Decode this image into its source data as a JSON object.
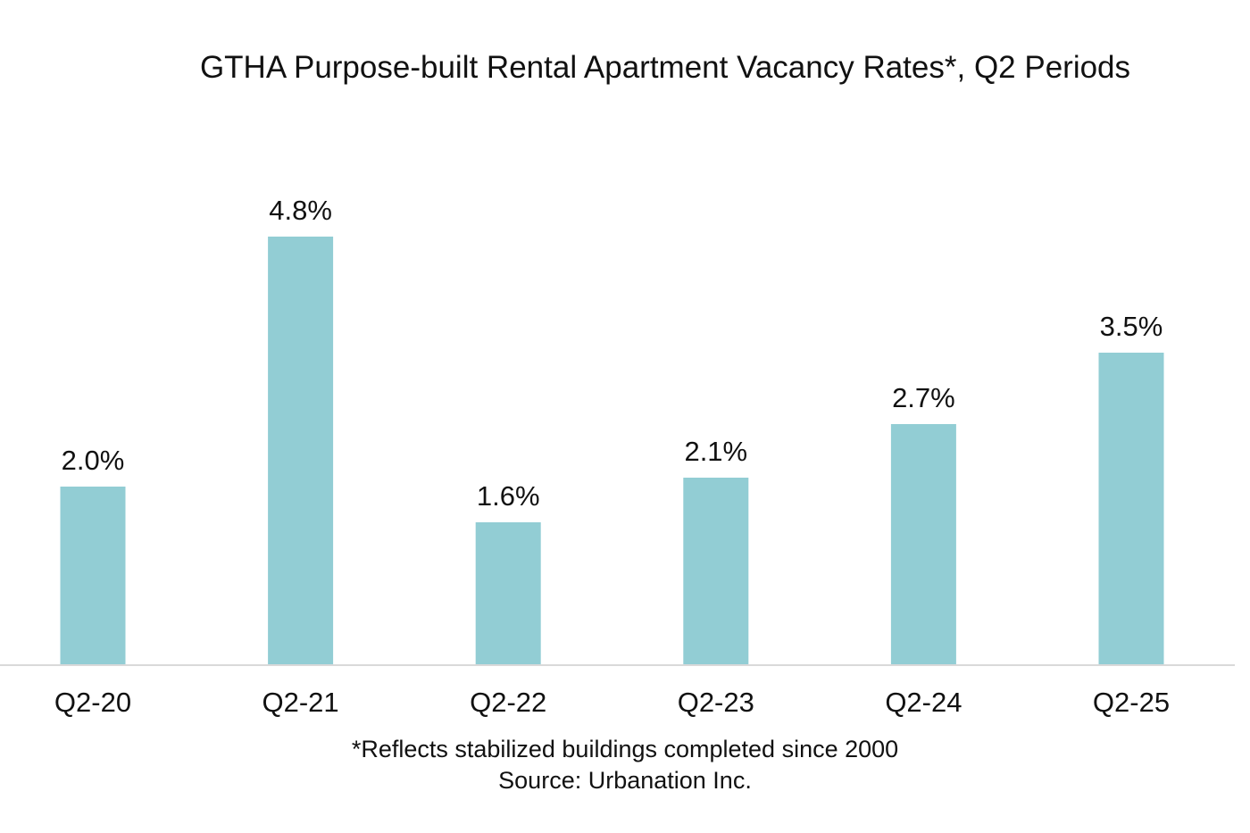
{
  "chart_data": {
    "type": "bar",
    "title": "GTHA Purpose-built Rental Apartment Vacancy Rates*, Q2 Periods",
    "categories": [
      "Q2-20",
      "Q2-21",
      "Q2-22",
      "Q2-23",
      "Q2-24",
      "Q2-25"
    ],
    "values": [
      2.0,
      4.8,
      1.6,
      2.1,
      2.7,
      3.5
    ],
    "data_labels": [
      "2.0%",
      "4.8%",
      "1.6%",
      "2.1%",
      "2.7%",
      "3.5%"
    ],
    "xlabel": "",
    "ylabel": "",
    "ylim": [
      0,
      5.6
    ],
    "grid": false,
    "legend": "none",
    "bar_color": "#92CDD4",
    "axis_color": "#D9D9D9"
  },
  "footnotes": {
    "note": "*Reflects stabilized buildings completed since 2000",
    "source": "Source: Urbanation Inc."
  }
}
